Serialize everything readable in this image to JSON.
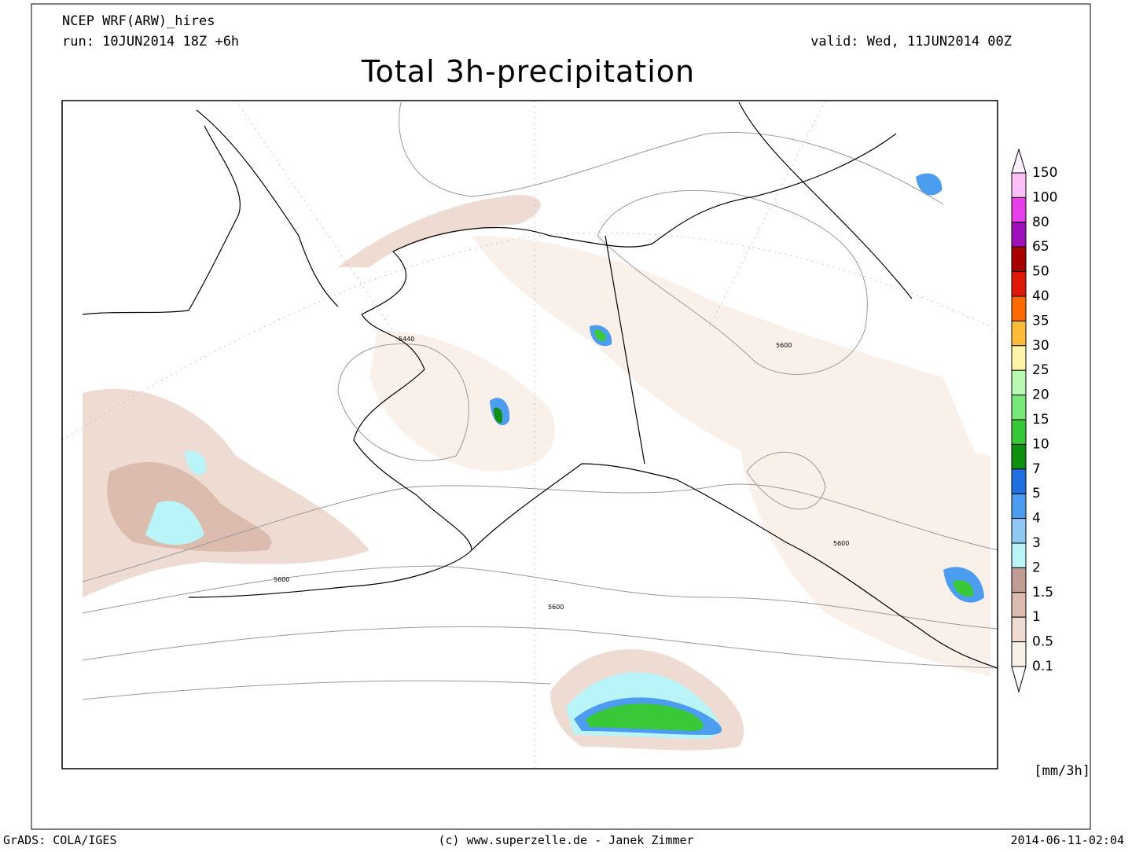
{
  "header": {
    "model": "NCEP WRF(ARW)_hires",
    "run": "run: 10JUN2014 18Z +6h",
    "valid": "valid: Wed, 11JUN2014 00Z",
    "title": "Total 3h-precipitation"
  },
  "map": {
    "contour_labels": [
      "5440",
      "5600",
      "5600",
      "5600",
      "5600"
    ]
  },
  "colorbar": {
    "levels": [
      "150",
      "100",
      "80",
      "65",
      "50",
      "40",
      "35",
      "30",
      "25",
      "20",
      "15",
      "10",
      "7",
      "5",
      "4",
      "3",
      "2",
      "1.5",
      "1",
      "0.5",
      "0.1"
    ],
    "colors": [
      "#fff0ff",
      "#ffc0f8",
      "#e840e8",
      "#a010b8",
      "#a80000",
      "#e01808",
      "#ff6a00",
      "#ffbc38",
      "#fff4a8",
      "#b8f8b0",
      "#78e878",
      "#38c838",
      "#109010",
      "#2070e0",
      "#4c9cf0",
      "#90c8f4",
      "#b8f4f8",
      "#c09c94",
      "#dcbcae",
      "#eedcd2",
      "#faf0ea",
      "#ffffff"
    ],
    "unit": "[mm/3h]"
  },
  "footer": {
    "left": "GrADS: COLA/IGES",
    "center": "(c) www.superzelle.de - Janek Zimmer",
    "right": "2014-06-11-02:04"
  }
}
